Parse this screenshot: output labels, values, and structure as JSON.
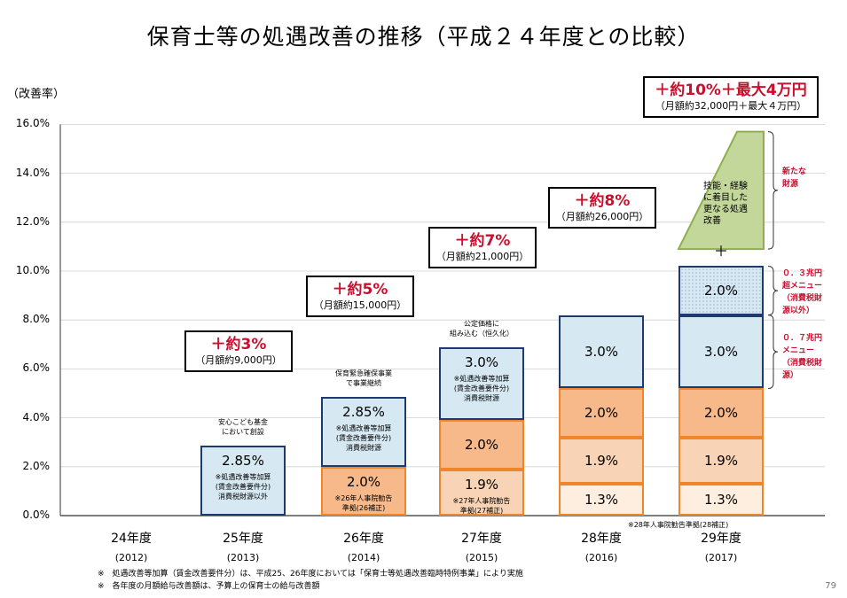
{
  "title": "保育士等の処遇改善の推移（平成２４年度との比較）",
  "chart_data": {
    "type": "bar",
    "stacked": true,
    "ylabel": "（改善率）",
    "ylim": [
      0,
      16
    ],
    "yticks": [
      "0.0%",
      "2.0%",
      "4.0%",
      "6.0%",
      "8.0%",
      "10.0%",
      "12.0%",
      "14.0%",
      "16.0%"
    ],
    "categories": [
      {
        "label": "24年度",
        "year": "(2012)"
      },
      {
        "label": "25年度",
        "year": "(2013)"
      },
      {
        "label": "26年度",
        "year": "(2014)"
      },
      {
        "label": "27年度",
        "year": "(2015)"
      },
      {
        "label": "28年度",
        "year": "(2016)"
      },
      {
        "label": "29年度",
        "year": "(2017)"
      }
    ],
    "segments": [
      {
        "cat": 1,
        "type": "blue",
        "value": 2.85,
        "label": "2.85%",
        "sub": "※処遇改善等加算\n(賃金改善要件分)\n消費税財源以外"
      },
      {
        "cat": 2,
        "type": "orange",
        "value": 2.0,
        "label": "2.0%",
        "sub": "※26年人事院勧告\n準拠(26補正)"
      },
      {
        "cat": 2,
        "type": "blue",
        "value": 2.85,
        "label": "2.85%",
        "sub": "※処遇改善等加算\n(賃金改善要件分)\n消費税財源"
      },
      {
        "cat": 3,
        "type": "orange-light",
        "value": 1.9,
        "label": "1.9%",
        "sub": "※27年人事院勧告\n準拠(27補正)"
      },
      {
        "cat": 3,
        "type": "orange",
        "value": 2.0,
        "label": "2.0%",
        "sub": ""
      },
      {
        "cat": 3,
        "type": "blue",
        "value": 3.0,
        "label": "3.0%",
        "sub": "※処遇改善等加算\n(賃金改善要件分)\n消費税財源"
      },
      {
        "cat": 4,
        "type": "cream",
        "value": 1.3,
        "label": "1.3%",
        "sub": ""
      },
      {
        "cat": 4,
        "type": "orange-light",
        "value": 1.9,
        "label": "1.9%",
        "sub": ""
      },
      {
        "cat": 4,
        "type": "orange",
        "value": 2.0,
        "label": "2.0%",
        "sub": ""
      },
      {
        "cat": 4,
        "type": "blue",
        "value": 3.0,
        "label": "3.0%",
        "sub": ""
      },
      {
        "cat": 5,
        "type": "cream",
        "value": 1.3,
        "label": "1.3%",
        "sub": ""
      },
      {
        "cat": 5,
        "type": "orange-light",
        "value": 1.9,
        "label": "1.9%",
        "sub": ""
      },
      {
        "cat": 5,
        "type": "orange",
        "value": 2.0,
        "label": "2.0%",
        "sub": ""
      },
      {
        "cat": 5,
        "type": "blue",
        "value": 3.0,
        "label": "3.0%",
        "sub": ""
      },
      {
        "cat": 5,
        "type": "blue-dotted",
        "value": 2.0,
        "label": "2.0%",
        "sub": ""
      }
    ],
    "extra": {
      "cat": 5,
      "base": 10.9,
      "top": 15.7,
      "label": "技能・経験\nに着目した\n更なる処遇\n改善"
    },
    "plus_sign": "＋",
    "above_notes": [
      {
        "cat": 1,
        "text": "安心こども基金\nにおいて創設"
      },
      {
        "cat": 2,
        "text": "保育緊急確保事業\nで事業継続"
      },
      {
        "cat": 3,
        "text": "公定価格に\n組み込む（恒久化）"
      }
    ],
    "annotation_2016": "※28年人事院勧告準拠(28補正)",
    "callouts": [
      {
        "cat": 1,
        "main": "＋約3%",
        "sub": "（月額約9,000円）"
      },
      {
        "cat": 2,
        "main": "＋約5%",
        "sub": "（月額約15,000円）"
      },
      {
        "cat": 3,
        "main": "＋約7%",
        "sub": "（月額約21,000円）"
      },
      {
        "cat": 4,
        "main": "＋約8%",
        "sub": "（月額約26,000円）"
      },
      {
        "cat": 5,
        "main": "＋約10%＋最大4万円",
        "sub": "（月額約32,000円＋最大４万円）"
      }
    ],
    "side_labels": [
      {
        "text": "新たな\n財源"
      },
      {
        "text": "０．３兆円\n超メニュー\n（消費税財\n源以外）"
      },
      {
        "text": "０．７兆円\nメニュー\n（消費税財\n源）"
      }
    ]
  },
  "footnotes": [
    "※　処遇改善等加算（賃金改善要件分）は、平成25、26年度においては「保育士等処遇改善臨時特例事業」により実施",
    "※　各年度の月額給与改善額は、予算上の保育士の給与改善額"
  ],
  "page_number": "79",
  "colors": {
    "blue": "#d6e8f2",
    "blue_border": "#1f3a6e",
    "orange": "#f7b98a",
    "orange_border": "#f0862a",
    "orange_light": "#f9d3b5",
    "cream": "#fdeedf",
    "green": "#c4d79b",
    "green_border": "#8fae4f",
    "red": "#c8102e"
  }
}
